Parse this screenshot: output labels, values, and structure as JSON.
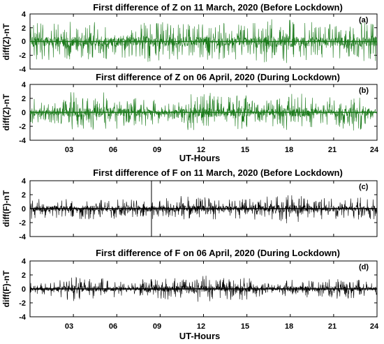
{
  "chart_data": [
    {
      "type": "line",
      "panel_letter": "(a)",
      "title": "First difference of Z on 11 March, 2020 (Before Lockdown)",
      "ylabel": "diff(Z)-nT",
      "xlabel": "",
      "xlim": [
        0,
        24
      ],
      "ylim": [
        -4,
        4
      ],
      "yticks": [
        "-4",
        "-2",
        "0",
        "2",
        "4"
      ],
      "xticks": [],
      "color": "#1a7a1a",
      "series": [
        {
          "x_range": [
            0,
            24
          ],
          "baseline": 0,
          "activity": [
            [
              0.0,
              3.1
            ],
            [
              1.0,
              2.6
            ],
            [
              2.0,
              3.0
            ],
            [
              3.0,
              2.9
            ],
            [
              4.0,
              2.7
            ],
            [
              5.0,
              3.0
            ],
            [
              6.0,
              2.5
            ],
            [
              7.0,
              2.4
            ],
            [
              8.0,
              3.0
            ],
            [
              9.0,
              2.9
            ],
            [
              10.0,
              2.6
            ],
            [
              11.0,
              3.0
            ],
            [
              12.0,
              2.8
            ],
            [
              13.0,
              2.6
            ],
            [
              14.0,
              2.7
            ],
            [
              15.0,
              2.4
            ],
            [
              16.0,
              3.1
            ],
            [
              17.0,
              3.3
            ],
            [
              18.0,
              3.2
            ],
            [
              19.0,
              2.8
            ],
            [
              20.0,
              2.9
            ],
            [
              21.0,
              2.6
            ],
            [
              22.0,
              2.4
            ],
            [
              23.0,
              3.1
            ],
            [
              24.0,
              2.8
            ]
          ]
        }
      ]
    },
    {
      "type": "line",
      "panel_letter": "(b)",
      "title": "First difference of Z on 06 April, 2020 (During Lockdown)",
      "ylabel": "diff(Z)-nT",
      "xlabel": "UT-Hours",
      "xlim": [
        0,
        24
      ],
      "ylim": [
        -4,
        4
      ],
      "yticks": [
        "-4",
        "-2",
        "0",
        "2",
        "4"
      ],
      "xticks": [
        "03",
        "06",
        "09",
        "12",
        "15",
        "18",
        "21",
        "24"
      ],
      "color": "#1a7a1a",
      "series": [
        {
          "x_range": [
            0,
            24
          ],
          "baseline": 0,
          "activity": [
            [
              0.0,
              2.4
            ],
            [
              1.0,
              1.2
            ],
            [
              2.0,
              2.0
            ],
            [
              3.0,
              3.1
            ],
            [
              4.0,
              2.5
            ],
            [
              5.0,
              3.0
            ],
            [
              6.0,
              2.4
            ],
            [
              7.0,
              2.0
            ],
            [
              8.0,
              2.3
            ],
            [
              9.0,
              1.5
            ],
            [
              10.0,
              1.2
            ],
            [
              11.0,
              2.9
            ],
            [
              12.0,
              3.0
            ],
            [
              13.0,
              2.7
            ],
            [
              14.0,
              2.3
            ],
            [
              15.0,
              2.6
            ],
            [
              16.0,
              1.4
            ],
            [
              17.0,
              2.2
            ],
            [
              18.0,
              2.7
            ],
            [
              19.0,
              2.8
            ],
            [
              20.0,
              1.5
            ],
            [
              21.0,
              2.4
            ],
            [
              22.0,
              2.8
            ],
            [
              23.0,
              2.5
            ],
            [
              24.0,
              0.3
            ]
          ]
        }
      ]
    },
    {
      "type": "line",
      "panel_letter": "(c)",
      "title": "First difference of F on 11 March, 2020 (Before Lockdown)",
      "ylabel": "diff(F)-nT",
      "xlabel": "",
      "xlim": [
        0,
        24
      ],
      "ylim": [
        -4,
        4
      ],
      "yticks": [
        "-4",
        "-2",
        "0",
        "2",
        "4"
      ],
      "xticks": [],
      "color": "#000000",
      "series": [
        {
          "x_range": [
            0,
            24
          ],
          "baseline": 0,
          "spike": {
            "x": 8.4,
            "ymin": -4,
            "ymax": 4
          },
          "activity": [
            [
              0.0,
              1.6
            ],
            [
              1.0,
              1.5
            ],
            [
              2.0,
              1.6
            ],
            [
              3.0,
              1.5
            ],
            [
              4.0,
              1.7
            ],
            [
              5.0,
              1.4
            ],
            [
              6.0,
              1.5
            ],
            [
              7.0,
              1.3
            ],
            [
              8.0,
              1.6
            ],
            [
              9.0,
              1.5
            ],
            [
              10.0,
              1.9
            ],
            [
              11.0,
              1.8
            ],
            [
              12.0,
              1.7
            ],
            [
              13.0,
              1.5
            ],
            [
              14.0,
              1.6
            ],
            [
              15.0,
              1.3
            ],
            [
              16.0,
              1.8
            ],
            [
              17.0,
              1.9
            ],
            [
              18.0,
              2.2
            ],
            [
              19.0,
              1.7
            ],
            [
              20.0,
              1.6
            ],
            [
              21.0,
              1.5
            ],
            [
              22.0,
              1.4
            ],
            [
              23.0,
              1.7
            ],
            [
              24.0,
              1.6
            ]
          ]
        }
      ]
    },
    {
      "type": "line",
      "panel_letter": "(d)",
      "title": "First difference of F on 06 April, 2020 (During Lockdown)",
      "ylabel": "diff(F)-nT",
      "xlabel": "UT-Hours",
      "xlim": [
        0,
        24
      ],
      "ylim": [
        -4,
        4
      ],
      "yticks": [
        "-4",
        "-2",
        "0",
        "2",
        "4"
      ],
      "xticks": [
        "03",
        "06",
        "09",
        "12",
        "15",
        "18",
        "21",
        "24"
      ],
      "color": "#000000",
      "series": [
        {
          "x_range": [
            0,
            24
          ],
          "baseline": 0,
          "activity": [
            [
              0.0,
              0.9
            ],
            [
              1.0,
              0.8
            ],
            [
              2.0,
              1.3
            ],
            [
              3.0,
              1.8
            ],
            [
              4.0,
              1.4
            ],
            [
              5.0,
              1.6
            ],
            [
              6.0,
              1.2
            ],
            [
              7.0,
              1.0
            ],
            [
              8.0,
              1.5
            ],
            [
              9.0,
              1.4
            ],
            [
              10.0,
              1.7
            ],
            [
              11.0,
              1.9
            ],
            [
              12.0,
              2.1
            ],
            [
              13.0,
              1.5
            ],
            [
              14.0,
              1.6
            ],
            [
              15.0,
              1.7
            ],
            [
              16.0,
              1.0
            ],
            [
              17.0,
              0.9
            ],
            [
              18.0,
              1.3
            ],
            [
              19.0,
              1.4
            ],
            [
              20.0,
              1.1
            ],
            [
              21.0,
              1.5
            ],
            [
              22.0,
              1.4
            ],
            [
              23.0,
              1.3
            ],
            [
              24.0,
              0.8
            ]
          ]
        }
      ]
    }
  ]
}
